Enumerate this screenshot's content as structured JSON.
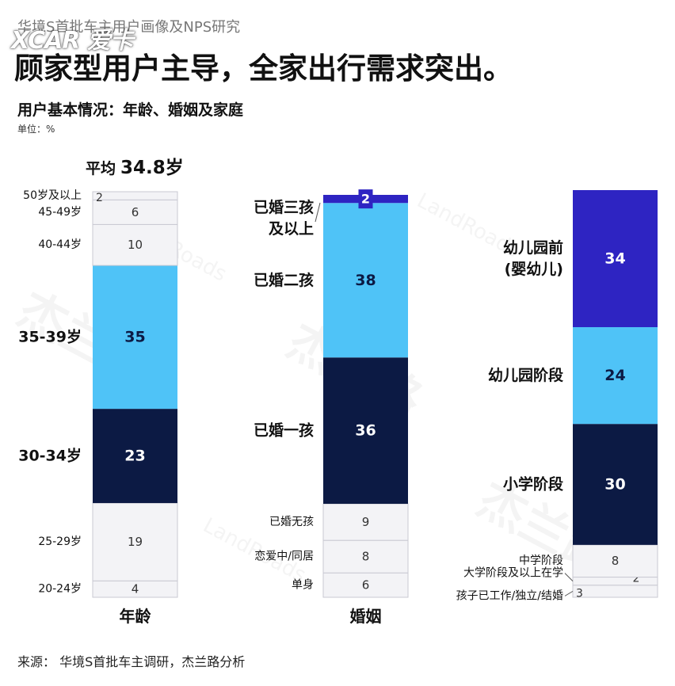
{
  "header": {
    "breadcrumb": "华境S首批车主用户画像及NPS研究",
    "logo": "XCAR 爱卡",
    "title": "顾家型用户主导，全家出行需求突出。",
    "subtitle": "用户基本情况：年龄、婚姻及家庭",
    "unit": "单位：%"
  },
  "average": {
    "label": "平均",
    "value": "34.8岁"
  },
  "watermark": {
    "text": "杰兰路",
    "sub": "LandRoads"
  },
  "source": "来源：  华境S首批车主调研，杰兰路分析",
  "colors": {
    "light_gray": "#f3f3f6",
    "light_blue": "#4fc3f7",
    "navy": "#0c1a44",
    "indigo": "#2e24c2",
    "border": "#c9c9d2"
  },
  "chart_data": {
    "type": "bar",
    "stacked": true,
    "ylim": [
      0,
      100
    ],
    "columns": [
      {
        "name": "年龄",
        "segments": [
          {
            "label": "20-24岁",
            "value": 4,
            "color": "light_gray",
            "emphasis": false
          },
          {
            "label": "25-29岁",
            "value": 19,
            "color": "light_gray",
            "emphasis": false
          },
          {
            "label": "30-34岁",
            "value": 23,
            "color": "navy",
            "emphasis": true
          },
          {
            "label": "35-39岁",
            "value": 35,
            "color": "light_blue",
            "emphasis": true
          },
          {
            "label": "40-44岁",
            "value": 10,
            "color": "light_gray",
            "emphasis": false
          },
          {
            "label": "45-49岁",
            "value": 6,
            "color": "light_gray",
            "emphasis": false
          },
          {
            "label": "50岁及以上",
            "value": 2,
            "color": "light_gray",
            "emphasis": false
          }
        ]
      },
      {
        "name": "婚姻",
        "segments": [
          {
            "label": "单身",
            "value": 6,
            "color": "light_gray",
            "emphasis": false
          },
          {
            "label": "恋爱中/同居",
            "value": 8,
            "color": "light_gray",
            "emphasis": false
          },
          {
            "label": "已婚无孩",
            "value": 9,
            "color": "light_gray",
            "emphasis": false
          },
          {
            "label": "已婚一孩",
            "value": 36,
            "color": "navy",
            "emphasis": true
          },
          {
            "label": "已婚二孩",
            "value": 38,
            "color": "light_blue",
            "emphasis": true
          },
          {
            "label": "已婚三孩|及以上",
            "value": 2,
            "color": "indigo",
            "emphasis": true
          }
        ]
      },
      {
        "name": "",
        "segments": [
          {
            "label": "孩子已工作/独立/结婚",
            "value": 3,
            "color": "light_gray",
            "emphasis": false
          },
          {
            "label": "大学阶段及以上在学",
            "value": 2,
            "color": "light_gray",
            "emphasis": false
          },
          {
            "label": "中学阶段",
            "value": 8,
            "color": "light_gray",
            "emphasis": false
          },
          {
            "label": "小学阶段",
            "value": 30,
            "color": "navy",
            "emphasis": true
          },
          {
            "label": "幼儿园阶段",
            "value": 24,
            "color": "light_blue",
            "emphasis": true
          },
          {
            "label": "幼儿园前|(婴幼儿)",
            "value": 34,
            "color": "indigo",
            "emphasis": true
          }
        ]
      }
    ]
  }
}
